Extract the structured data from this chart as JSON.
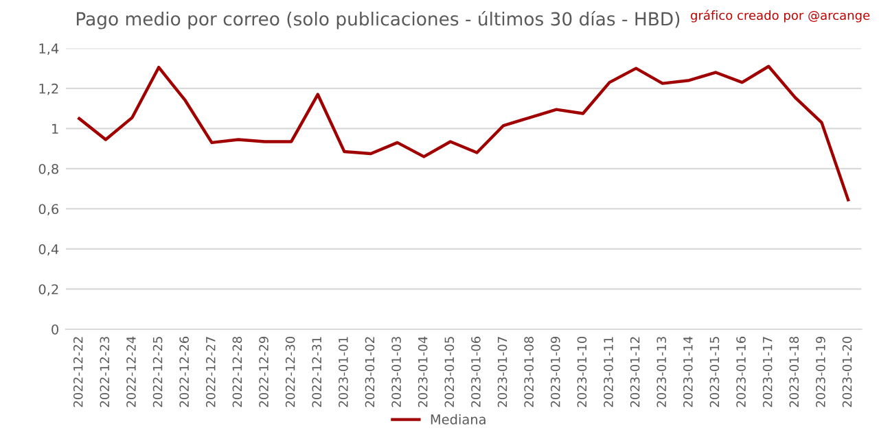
{
  "chart_data": {
    "type": "line",
    "title": "Pago medio por correo (solo publicaciones - últimos 30 días - HBD)",
    "annotations": [
      "gráfico creado por @arcange"
    ],
    "categories": [
      "2022-12-22",
      "2022-12-23",
      "2022-12-24",
      "2022-12-25",
      "2022-12-26",
      "2022-12-27",
      "2022-12-28",
      "2022-12-29",
      "2022-12-30",
      "2022-12-31",
      "2023-01-01",
      "2023-01-02",
      "2023-01-03",
      "2023-01-04",
      "2023-01-05",
      "2023-01-06",
      "2023-01-07",
      "2023-01-08",
      "2023-01-09",
      "2023-01-10",
      "2023-01-11",
      "2023-01-12",
      "2023-01-13",
      "2023-01-14",
      "2023-01-15",
      "2023-01-16",
      "2023-01-17",
      "2023-01-18",
      "2023-01-19",
      "2023-01-20"
    ],
    "series": [
      {
        "name": "Mediana",
        "color": "#a00000",
        "values": [
          1.05,
          0.945,
          1.055,
          1.305,
          1.14,
          0.93,
          0.945,
          0.935,
          0.935,
          1.17,
          0.885,
          0.875,
          0.93,
          0.86,
          0.935,
          0.88,
          1.015,
          1.055,
          1.095,
          1.075,
          1.23,
          1.3,
          1.225,
          1.24,
          1.28,
          1.23,
          1.31,
          1.155,
          1.03,
          0.645
        ]
      }
    ],
    "ylim": [
      0,
      1.4
    ],
    "yticks": [
      0,
      {
        "value": 0.2,
        "label": "0,2"
      },
      {
        "value": 0.4,
        "label": "0,4"
      },
      {
        "value": 0.6,
        "label": "0,6"
      },
      {
        "value": 0.8,
        "label": "0,8"
      },
      1,
      {
        "value": 1.2,
        "label": "1,2"
      },
      {
        "value": 1.4,
        "label": "1,4"
      }
    ],
    "grid": "y",
    "legend": "bottom",
    "marker": "none",
    "line_style": "solid"
  }
}
